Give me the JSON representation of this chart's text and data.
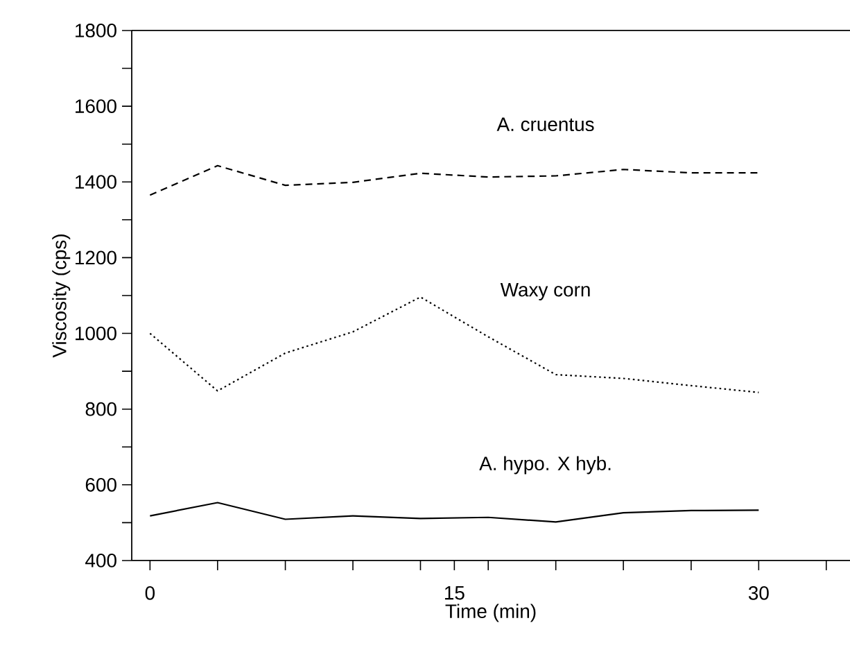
{
  "chart_data": {
    "type": "line",
    "xlabel": "Time (min)",
    "ylabel": "Viscosity (cps)",
    "x": [
      0,
      3.33,
      6.67,
      10,
      13.33,
      16.67,
      20,
      23.33,
      26.67,
      30
    ],
    "series": [
      {
        "name": "A. cruentus",
        "color": "#000000",
        "line_style": "dashed",
        "values": [
          1365,
          1443,
          1391,
          1399,
          1423,
          1413,
          1416,
          1433,
          1424,
          1424
        ]
      },
      {
        "name": "Waxy corn",
        "color": "#000000",
        "line_style": "dotted",
        "values": [
          1000,
          848,
          948,
          1004,
          1096,
          991,
          891,
          881,
          862,
          844
        ]
      },
      {
        "name": "A. hypo. X hyb.",
        "color": "#000000",
        "line_style": "solid",
        "values": [
          518,
          553,
          509,
          518,
          511,
          514,
          502,
          526,
          532,
          533
        ]
      }
    ],
    "xlim": [
      -0.9,
      34.5
    ],
    "ylim": [
      400,
      1800
    ],
    "xticks": [
      0,
      {
        "value": 3.33,
        "label": null
      },
      {
        "value": 6.67,
        "label": null
      },
      {
        "value": 10,
        "label": null
      },
      {
        "value": 13.33,
        "label": null
      },
      15,
      {
        "value": 16.67,
        "label": null
      },
      {
        "value": 20,
        "label": null
      },
      {
        "value": 23.33,
        "label": null
      },
      {
        "value": 26.67,
        "label": null
      },
      30,
      {
        "value": 33.33,
        "label": null
      }
    ],
    "yticks": [
      400,
      {
        "value": 500,
        "label": null
      },
      600,
      {
        "value": 700,
        "label": null
      },
      800,
      {
        "value": 900,
        "label": null
      },
      1000,
      {
        "value": 1100,
        "label": null
      },
      1200,
      {
        "value": 1300,
        "label": null
      },
      1400,
      {
        "value": 1500,
        "label": null
      },
      1600,
      {
        "value": 1700,
        "label": null
      },
      1800
    ]
  }
}
